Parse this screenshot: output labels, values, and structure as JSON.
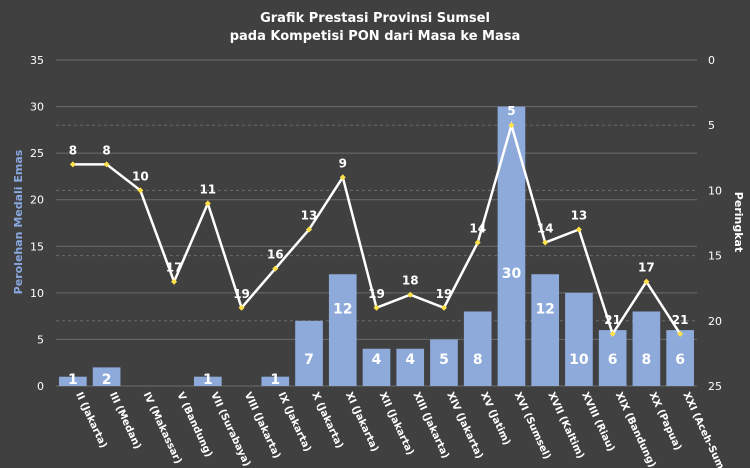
{
  "title_line1": "Grafik Prestasi Provinsi Sumsel",
  "title_line2": "pada Kompetisi PON dari Masa ke Masa",
  "colors": {
    "background": "#404040",
    "bar": "#8eaadb",
    "line": "#ffffff",
    "marker": "#ffe14a",
    "grid": "#6b6b6b",
    "left_axis_label": "#8aa8e0"
  },
  "chart_data": {
    "type": "bar+line",
    "categories": [
      "II (Jakarta)",
      "III (Medan)",
      "IV (Makassar)",
      "V (Bandung)",
      "VII (Surabaya)",
      "VIII (Jakarta)",
      "IX (Jakarta)",
      "X (Jakarta)",
      "XI (Jakarta)",
      "XII (Jakarta)",
      "XIII (Jakarta)",
      "XIV (Jakarta)",
      "XV (Jatim)",
      "XVI (Sumsel)",
      "XVII (Kaltim)",
      "XVIII (Riau)",
      "XIX (Bandung)",
      "XX (Papua)",
      "XXI (Aceh-Sumut)"
    ],
    "series": [
      {
        "type": "bar",
        "axis": "left",
        "values": [
          1,
          2,
          0,
          0,
          1,
          0,
          1,
          7,
          12,
          4,
          4,
          5,
          8,
          30,
          12,
          10,
          6,
          8,
          6
        ],
        "labels": [
          "1",
          "2",
          "",
          "",
          "1",
          "",
          "1",
          "7",
          "12",
          "4",
          "4",
          "5",
          "8",
          "30",
          "12",
          "10",
          "6",
          "8",
          "6"
        ]
      },
      {
        "type": "line",
        "axis": "right",
        "values": [
          8,
          8,
          10,
          17,
          11,
          19,
          16,
          13,
          9,
          19,
          18,
          19,
          14,
          5,
          14,
          13,
          21,
          17,
          21
        ],
        "labels": [
          "8",
          "8",
          "10",
          "17",
          "11",
          "19",
          "16",
          "13",
          "9",
          "19",
          "18",
          "19",
          "14",
          "5",
          "14",
          "13",
          "21",
          "17",
          "21"
        ]
      }
    ],
    "ylabel_left": "Perolehan Medali Emas",
    "ylabel_right": "Peringkat",
    "ylim_left": [
      0,
      35
    ],
    "yticks_left": [
      0,
      5,
      10,
      15,
      20,
      25,
      30,
      35
    ],
    "ylim_right": [
      0,
      25
    ],
    "yticks_right": [
      0,
      5,
      10,
      15,
      20,
      25
    ],
    "right_axis_inverted": true,
    "grid": true
  }
}
